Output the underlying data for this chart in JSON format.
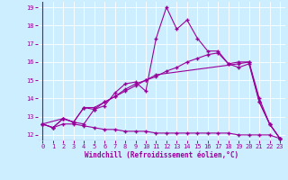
{
  "xlabel": "Windchill (Refroidissement éolien,°C)",
  "background_color": "#cceeff",
  "line_color": "#990099",
  "xlim": [
    -0.5,
    23.5
  ],
  "ylim": [
    11.7,
    19.3
  ],
  "yticks": [
    12,
    13,
    14,
    15,
    16,
    17,
    18,
    19
  ],
  "xticks": [
    0,
    1,
    2,
    3,
    4,
    5,
    6,
    7,
    8,
    9,
    10,
    11,
    12,
    13,
    14,
    15,
    16,
    17,
    18,
    19,
    20,
    21,
    22,
    23
  ],
  "series1_x": [
    0,
    1,
    2,
    3,
    4,
    5,
    6,
    7,
    8,
    9,
    10,
    11,
    12,
    13,
    14,
    15,
    16,
    17,
    18,
    19,
    20,
    21,
    22,
    23
  ],
  "series1_y": [
    12.6,
    12.4,
    12.9,
    12.7,
    12.6,
    13.4,
    13.6,
    14.3,
    14.8,
    14.9,
    14.4,
    17.3,
    19.0,
    17.8,
    18.3,
    17.3,
    16.6,
    16.6,
    15.9,
    16.0,
    16.0,
    13.8,
    12.6,
    11.8
  ],
  "series2_x": [
    0,
    2,
    3,
    4,
    5,
    6,
    7,
    8,
    9,
    10,
    11,
    19,
    20,
    21,
    22,
    23
  ],
  "series2_y": [
    12.6,
    12.9,
    12.7,
    13.5,
    13.4,
    13.8,
    14.1,
    14.5,
    14.8,
    15.0,
    15.3,
    15.9,
    16.0,
    14.0,
    12.6,
    11.8
  ],
  "series3_x": [
    0,
    1,
    2,
    3,
    4,
    5,
    6,
    7,
    8,
    9,
    10,
    11,
    12,
    13,
    14,
    15,
    16,
    17,
    18,
    19,
    20,
    21,
    22,
    23
  ],
  "series3_y": [
    12.6,
    12.4,
    12.9,
    12.7,
    13.5,
    13.5,
    13.8,
    14.1,
    14.4,
    14.7,
    15.0,
    15.2,
    15.5,
    15.7,
    16.0,
    16.2,
    16.4,
    16.5,
    15.9,
    15.7,
    15.9,
    13.8,
    12.6,
    11.8
  ],
  "series4_x": [
    0,
    1,
    2,
    3,
    4,
    5,
    6,
    7,
    8,
    9,
    10,
    11,
    12,
    13,
    14,
    15,
    16,
    17,
    18,
    19,
    20,
    21,
    22,
    23
  ],
  "series4_y": [
    12.6,
    12.4,
    12.6,
    12.6,
    12.5,
    12.4,
    12.3,
    12.3,
    12.2,
    12.2,
    12.2,
    12.1,
    12.1,
    12.1,
    12.1,
    12.1,
    12.1,
    12.1,
    12.1,
    12.0,
    12.0,
    12.0,
    12.0,
    11.8
  ]
}
